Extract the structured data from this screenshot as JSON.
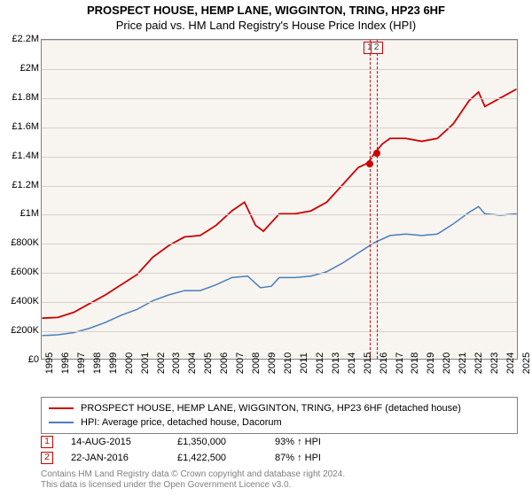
{
  "header": {
    "title": "PROSPECT HOUSE, HEMP LANE, WIGGINTON, TRING, HP23 6HF",
    "subtitle": "Price paid vs. HM Land Registry's House Price Index (HPI)"
  },
  "chart": {
    "type": "line",
    "background_color": "#f8f4f0",
    "grid_color": "#d8d0c8",
    "border_color": "#808080",
    "x": {
      "min": 1995,
      "max": 2025,
      "tick_step": 1,
      "label_fontsize": 11,
      "label_rotation": -90
    },
    "y": {
      "min": 0,
      "max": 2200000,
      "tick_step": 200000,
      "tick_labels": [
        "£0",
        "£200K",
        "£400K",
        "£600K",
        "£800K",
        "£1M",
        "£1.2M",
        "£1.4M",
        "£1.6M",
        "£1.8M",
        "£2M",
        "£2.2M"
      ],
      "label_fontsize": 11
    },
    "series": [
      {
        "id": "property",
        "label": "PROSPECT HOUSE, HEMP LANE, WIGGINTON, TRING, HP23 6HF (detached house)",
        "color": "#cc0000",
        "line_width": 1.8,
        "points": [
          [
            1995.0,
            280000
          ],
          [
            1996.0,
            285000
          ],
          [
            1997.0,
            320000
          ],
          [
            1998.0,
            380000
          ],
          [
            1999.0,
            440000
          ],
          [
            2000.0,
            510000
          ],
          [
            2001.0,
            580000
          ],
          [
            2002.0,
            700000
          ],
          [
            2003.0,
            780000
          ],
          [
            2004.0,
            840000
          ],
          [
            2005.0,
            850000
          ],
          [
            2006.0,
            920000
          ],
          [
            2007.0,
            1020000
          ],
          [
            2007.8,
            1080000
          ],
          [
            2008.5,
            920000
          ],
          [
            2009.0,
            880000
          ],
          [
            2010.0,
            1000000
          ],
          [
            2011.0,
            1000000
          ],
          [
            2012.0,
            1020000
          ],
          [
            2013.0,
            1080000
          ],
          [
            2014.0,
            1200000
          ],
          [
            2015.0,
            1320000
          ],
          [
            2015.6,
            1350000
          ],
          [
            2016.06,
            1422500
          ],
          [
            2016.5,
            1480000
          ],
          [
            2017.0,
            1520000
          ],
          [
            2018.0,
            1520000
          ],
          [
            2019.0,
            1500000
          ],
          [
            2020.0,
            1520000
          ],
          [
            2021.0,
            1620000
          ],
          [
            2022.0,
            1780000
          ],
          [
            2022.6,
            1840000
          ],
          [
            2023.0,
            1740000
          ],
          [
            2024.0,
            1800000
          ],
          [
            2025.0,
            1860000
          ]
        ]
      },
      {
        "id": "hpi",
        "label": "HPI: Average price, detached house, Dacorum",
        "color": "#4a7ebb",
        "line_width": 1.5,
        "points": [
          [
            1995.0,
            160000
          ],
          [
            1996.0,
            165000
          ],
          [
            1997.0,
            180000
          ],
          [
            1998.0,
            210000
          ],
          [
            1999.0,
            250000
          ],
          [
            2000.0,
            300000
          ],
          [
            2001.0,
            340000
          ],
          [
            2002.0,
            400000
          ],
          [
            2003.0,
            440000
          ],
          [
            2004.0,
            470000
          ],
          [
            2005.0,
            470000
          ],
          [
            2006.0,
            510000
          ],
          [
            2007.0,
            560000
          ],
          [
            2008.0,
            570000
          ],
          [
            2008.8,
            490000
          ],
          [
            2009.5,
            500000
          ],
          [
            2010.0,
            560000
          ],
          [
            2011.0,
            560000
          ],
          [
            2012.0,
            570000
          ],
          [
            2013.0,
            600000
          ],
          [
            2014.0,
            660000
          ],
          [
            2015.0,
            730000
          ],
          [
            2016.0,
            800000
          ],
          [
            2017.0,
            850000
          ],
          [
            2018.0,
            860000
          ],
          [
            2019.0,
            850000
          ],
          [
            2020.0,
            860000
          ],
          [
            2021.0,
            930000
          ],
          [
            2022.0,
            1010000
          ],
          [
            2022.6,
            1050000
          ],
          [
            2023.0,
            1000000
          ],
          [
            2024.0,
            990000
          ],
          [
            2025.0,
            1000000
          ]
        ]
      }
    ],
    "markers": [
      {
        "index": 1,
        "x": 2015.62,
        "y": 1350000,
        "color": "#cc0000"
      },
      {
        "index": 2,
        "x": 2016.06,
        "y": 1422500,
        "color": "#cc0000"
      }
    ]
  },
  "legend": {
    "border_color": "#808080",
    "rows": [
      {
        "color": "#cc0000",
        "label": "PROSPECT HOUSE, HEMP LANE, WIGGINTON, TRING, HP23 6HF (detached house)"
      },
      {
        "color": "#4a7ebb",
        "label": "HPI: Average price, detached house, Dacorum"
      }
    ]
  },
  "events": [
    {
      "index": "1",
      "date": "14-AUG-2015",
      "price": "£1,350,000",
      "delta": "93% ↑ HPI"
    },
    {
      "index": "2",
      "date": "22-JAN-2016",
      "price": "£1,422,500",
      "delta": "87% ↑ HPI"
    }
  ],
  "footer": {
    "line1": "Contains HM Land Registry data © Crown copyright and database right 2024.",
    "line2": "This data is licensed under the Open Government Licence v3.0."
  }
}
